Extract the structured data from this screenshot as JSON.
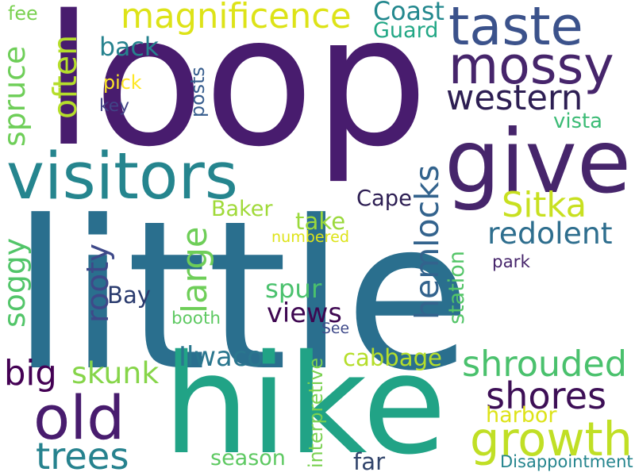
{
  "words": [
    {
      "text": "loop",
      "color": "#481c6e"
    },
    {
      "text": "little",
      "color": "#2a6f8e"
    },
    {
      "text": "hike",
      "color": "#21a386"
    },
    {
      "text": "visitors",
      "color": "#25858e"
    },
    {
      "text": "give",
      "color": "#46256b"
    },
    {
      "text": "taste",
      "color": "#3b528b"
    },
    {
      "text": "mossy",
      "color": "#46256b"
    },
    {
      "text": "growth",
      "color": "#c0df25"
    },
    {
      "text": "old",
      "color": "#481c6e"
    },
    {
      "text": "magnificence",
      "color": "#dde318"
    },
    {
      "text": "western",
      "color": "#2d1e53"
    },
    {
      "text": "hemlocks",
      "color": "#33638d"
    },
    {
      "text": "shrouded",
      "color": "#4ac16d"
    },
    {
      "text": "shores",
      "color": "#3d0f56"
    },
    {
      "text": "trees",
      "color": "#26828e"
    },
    {
      "text": "big",
      "color": "#440154"
    },
    {
      "text": "skunk",
      "color": "#86d549"
    },
    {
      "text": "Sitka",
      "color": "#c8e020"
    },
    {
      "text": "redolent",
      "color": "#2e6e8e"
    },
    {
      "text": "large",
      "color": "#6ece58"
    },
    {
      "text": "rooty",
      "color": "#3e4989"
    },
    {
      "text": "soggy",
      "color": "#52c569"
    },
    {
      "text": "spruce",
      "color": "#6ece58"
    },
    {
      "text": "often",
      "color": "#b5de2b"
    },
    {
      "text": "Coast",
      "color": "#23888e"
    },
    {
      "text": "Guard",
      "color": "#22a785"
    },
    {
      "text": "back",
      "color": "#26828e"
    },
    {
      "text": "cabbage",
      "color": "#b5de2b"
    },
    {
      "text": "Ilwaco",
      "color": "#2a768e"
    },
    {
      "text": "views",
      "color": "#3e0751"
    },
    {
      "text": "spur",
      "color": "#4ac16d"
    },
    {
      "text": "harbor",
      "color": "#dde318"
    },
    {
      "text": "season",
      "color": "#5ec962"
    },
    {
      "text": "station",
      "color": "#54c568"
    },
    {
      "text": "Baker",
      "color": "#a0da39"
    },
    {
      "text": "take",
      "color": "#9bd93c"
    },
    {
      "text": "Cape",
      "color": "#2d1e53"
    },
    {
      "text": "Bay",
      "color": "#2a3b6e"
    },
    {
      "text": "vista",
      "color": "#3bbb75"
    },
    {
      "text": "far",
      "color": "#31446b"
    },
    {
      "text": "key",
      "color": "#414487"
    },
    {
      "text": "pick",
      "color": "#fde725"
    },
    {
      "text": "posts",
      "color": "#365c8d"
    },
    {
      "text": "fee",
      "color": "#7ad151"
    },
    {
      "text": "numbered",
      "color": "#dde318"
    },
    {
      "text": "booth",
      "color": "#5ec962"
    },
    {
      "text": "See",
      "color": "#3e4989"
    },
    {
      "text": "park",
      "color": "#46256b"
    },
    {
      "text": "interpretive",
      "color": "#7ad151"
    },
    {
      "text": "Disappointment",
      "color": "#25858e"
    }
  ]
}
